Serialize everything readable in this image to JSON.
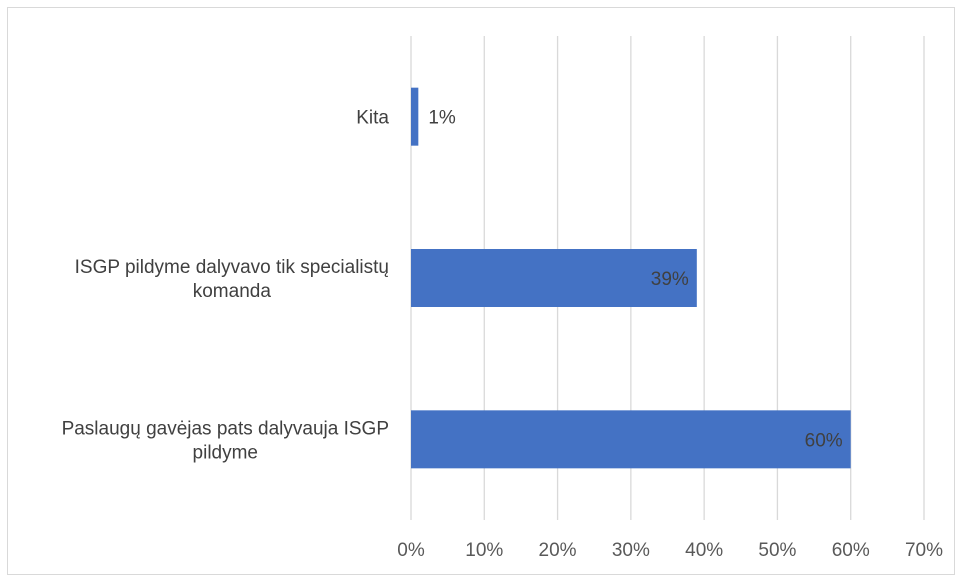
{
  "chart_data": {
    "type": "bar",
    "orientation": "horizontal",
    "categories": [
      [
        "Kita"
      ],
      [
        "ISGP pildyme dalyvavo tik specialistų",
        "komanda"
      ],
      [
        "Paslaugų gavėjas pats dalyvauja ISGP",
        "pildyme"
      ]
    ],
    "values": [
      1,
      39,
      60
    ],
    "data_labels": [
      "1%",
      "39%",
      "60%"
    ],
    "xlim": [
      0,
      70
    ],
    "x_ticks": [
      0,
      10,
      20,
      30,
      40,
      50,
      60,
      70
    ],
    "x_tick_labels": [
      "0%",
      "10%",
      "20%",
      "30%",
      "40%",
      "50%",
      "60%",
      "70%"
    ],
    "grid": true,
    "legend": "none",
    "colors": {
      "bar": "#4472c4",
      "grid": "#d9d9d9",
      "label_inside": "#404040",
      "label_outside": "#404040"
    }
  }
}
